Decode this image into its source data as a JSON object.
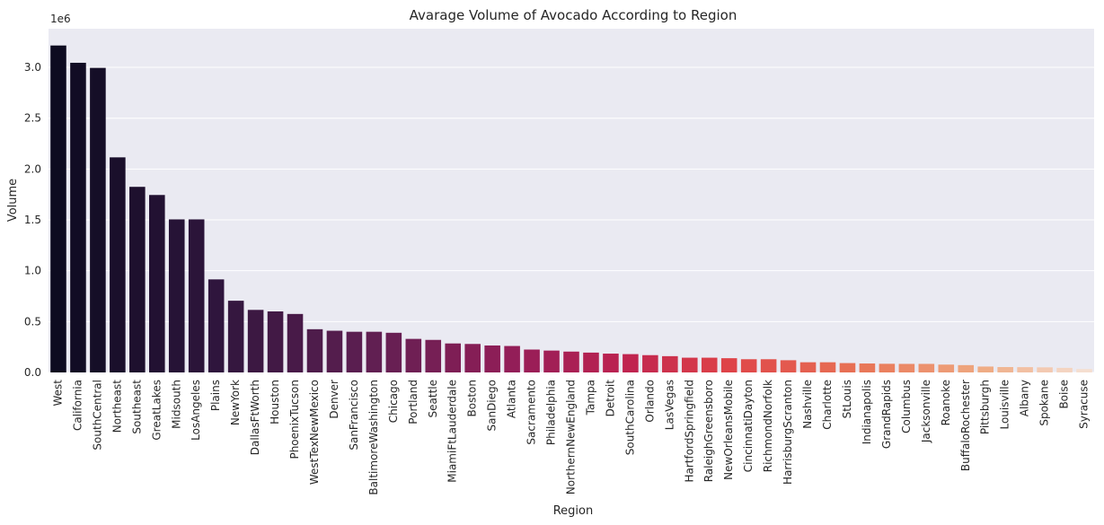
{
  "chart_data": {
    "type": "bar",
    "title": "Avarage Volume of Avocado According to Region",
    "xlabel": "Region",
    "ylabel": "Volume",
    "y_offset_label": "1e6",
    "y_scale": 1000000,
    "ylim": [
      0,
      3.38
    ],
    "yticks": [
      0.0,
      0.5,
      1.0,
      1.5,
      2.0,
      2.5,
      3.0
    ],
    "ytick_labels": [
      "0.0",
      "0.5",
      "1.0",
      "1.5",
      "2.0",
      "2.5",
      "3.0"
    ],
    "grid": true,
    "palette": "rocket",
    "background_color": "#eaeaf2",
    "categories": [
      "West",
      "California",
      "SouthCentral",
      "Northeast",
      "Southeast",
      "GreatLakes",
      "Midsouth",
      "LosAngeles",
      "Plains",
      "NewYork",
      "DallasFtWorth",
      "Houston",
      "PhoenixTucson",
      "WestTexNewMexico",
      "Denver",
      "SanFrancisco",
      "BaltimoreWashington",
      "Chicago",
      "Portland",
      "Seattle",
      "MiamiFtLauderdale",
      "Boston",
      "SanDiego",
      "Atlanta",
      "Sacramento",
      "Philadelphia",
      "NorthernNewEngland",
      "Tampa",
      "Detroit",
      "SouthCarolina",
      "Orlando",
      "LasVegas",
      "HartfordSpringfield",
      "RaleighGreensboro",
      "NewOrleansMobile",
      "CincinnatiDayton",
      "RichmondNorfolk",
      "HarrisburgScranton",
      "Nashville",
      "Charlotte",
      "StLouis",
      "Indianapolis",
      "GrandRapids",
      "Columbus",
      "Jacksonville",
      "Roanoke",
      "BuffaloRochester",
      "Pittsburgh",
      "Louisville",
      "Albany",
      "Spokane",
      "Boise",
      "Syracuse"
    ],
    "values": [
      3215000,
      3045000,
      2995000,
      2115000,
      1825000,
      1745000,
      1505000,
      1505000,
      915000,
      705000,
      615000,
      600000,
      575000,
      425000,
      410000,
      400000,
      400000,
      390000,
      330000,
      320000,
      285000,
      280000,
      265000,
      260000,
      225000,
      215000,
      205000,
      195000,
      185000,
      180000,
      170000,
      160000,
      145000,
      145000,
      140000,
      130000,
      130000,
      120000,
      100000,
      100000,
      92000,
      88000,
      85000,
      84000,
      84000,
      77000,
      72000,
      58000,
      53000,
      52000,
      50000,
      45000,
      33000
    ]
  }
}
